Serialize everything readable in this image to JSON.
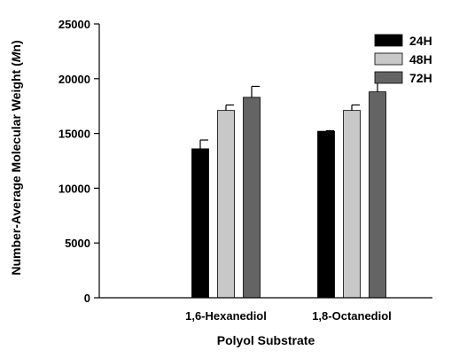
{
  "chart_data": {
    "type": "bar",
    "title": "",
    "xlabel": "Polyol Substrate",
    "ylabel_prefix": "Number-Average Molecular Weight (",
    "ylabel_italic": "M",
    "ylabel_suffix": "n)",
    "categories": [
      "1,6-Hexanediol",
      "1,8-Octanediol"
    ],
    "ylim": [
      0,
      25000
    ],
    "yticks": [
      0,
      5000,
      10000,
      15000,
      20000,
      25000
    ],
    "ytick_labels": [
      "0",
      "5000",
      "10000",
      "15000",
      "20000",
      "25000"
    ],
    "legend_position": "top-right",
    "grid": false,
    "series": [
      {
        "name": "24H",
        "color": "#000000",
        "values": [
          13600,
          15200
        ],
        "errors": [
          800,
          50
        ]
      },
      {
        "name": "48H",
        "color": "#c8c8c8",
        "values": [
          17100,
          17100
        ],
        "errors": [
          500,
          500
        ]
      },
      {
        "name": "72H",
        "color": "#646464",
        "values": [
          18300,
          18800
        ],
        "errors": [
          1000,
          900
        ]
      }
    ]
  }
}
